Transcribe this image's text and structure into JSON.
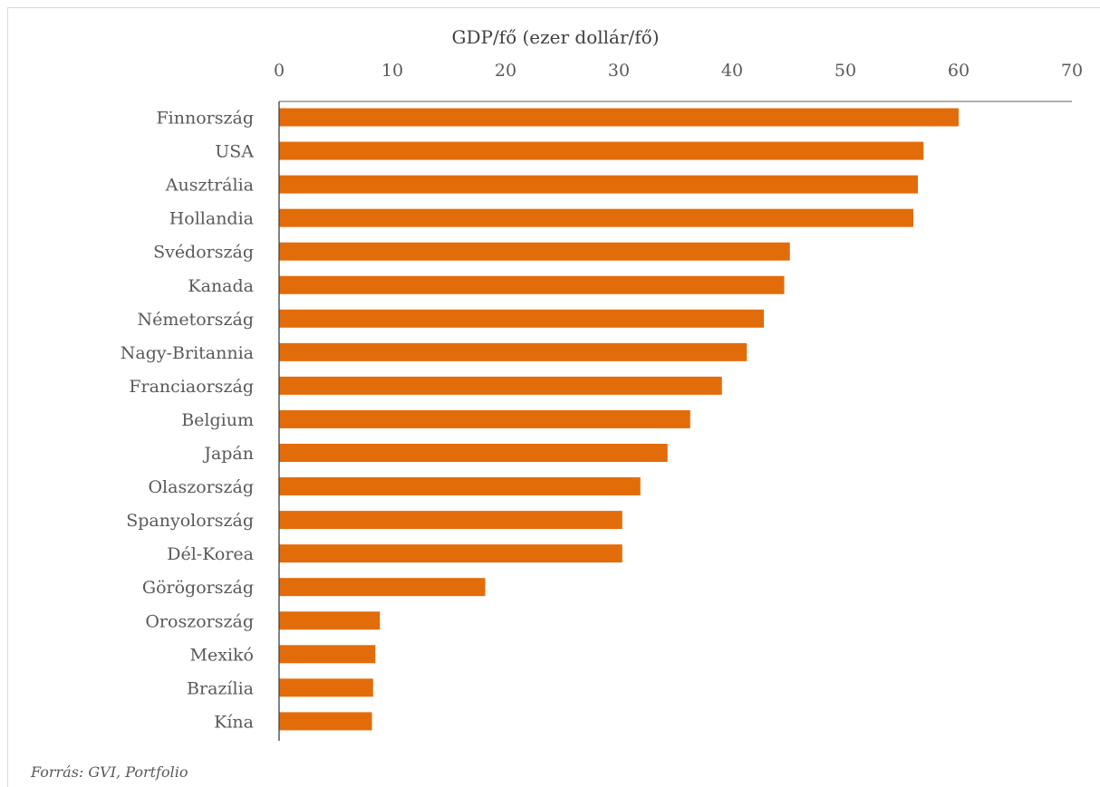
{
  "chart_data": {
    "type": "bar",
    "orientation": "horizontal",
    "title": "",
    "xlabel": "GDP/fő (ezer dollár/fő)",
    "ylabel": "",
    "xlim": [
      0,
      70
    ],
    "x_ticks": [
      0,
      10,
      20,
      30,
      40,
      50,
      60,
      70
    ],
    "x_axis_position": "top",
    "grid": false,
    "legend": "none",
    "bar_color": "#E36C0A",
    "categories": [
      "Finnország",
      "USA",
      "Ausztrália",
      "Hollandia",
      "Svédország",
      "Kanada",
      "Németország",
      "Nagy-Britannia",
      "Franciaország",
      "Belgium",
      "Japán",
      "Olaszország",
      "Spanyolország",
      "Dél-Korea",
      "Görögország",
      "Oroszország",
      "Mexikó",
      "Brazília",
      "Kína"
    ],
    "values": [
      60.0,
      56.9,
      56.4,
      56.0,
      45.1,
      44.6,
      42.8,
      41.3,
      39.1,
      36.3,
      34.3,
      31.9,
      30.3,
      30.3,
      18.2,
      8.9,
      8.5,
      8.3,
      8.2
    ]
  },
  "source": "Forrás: GVI, Portfolio"
}
